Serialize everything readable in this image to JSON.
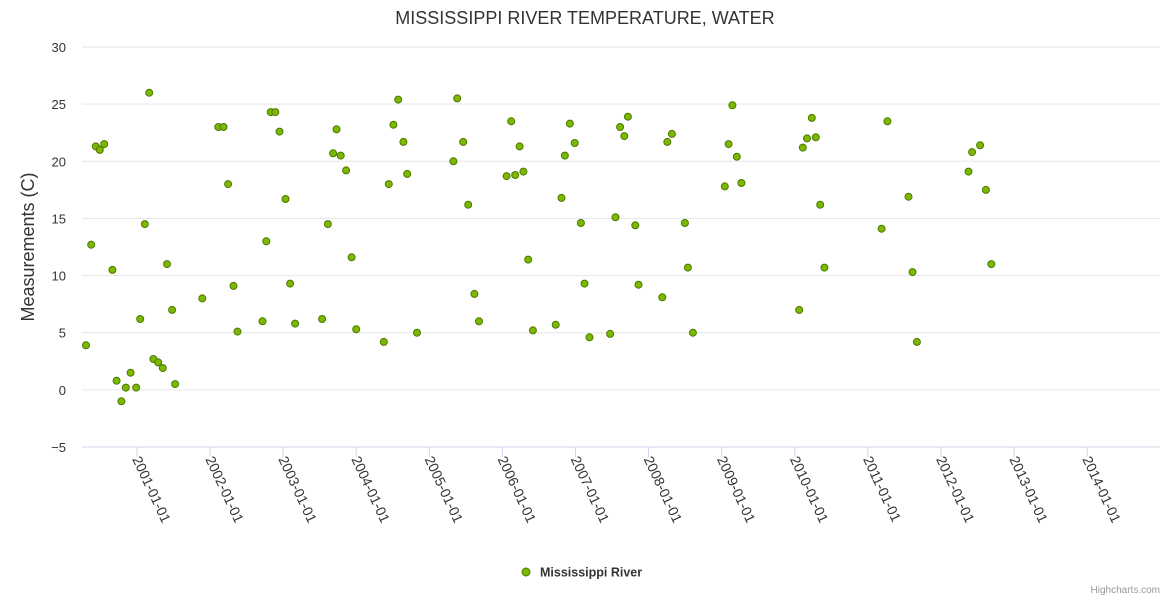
{
  "chart_data": {
    "type": "scatter",
    "title": "MISSISSIPPI RIVER TEMPERATURE, WATER",
    "xlabel": "",
    "ylabel": "Measurements (C)",
    "x_axis_type": "date",
    "xlim": [
      "2000-04-01",
      "2014-12-31"
    ],
    "ylim": [
      -5,
      30
    ],
    "y_ticks": [
      -5,
      0,
      5,
      10,
      15,
      20,
      25,
      30
    ],
    "x_ticks": [
      "2001-01-01",
      "2002-01-01",
      "2003-01-01",
      "2004-01-01",
      "2005-01-01",
      "2006-01-01",
      "2007-01-01",
      "2008-01-01",
      "2009-01-01",
      "2010-01-01",
      "2011-01-01",
      "2012-01-01",
      "2013-01-01",
      "2014-01-01"
    ],
    "grid": "y-only",
    "legend_position": "bottom-center",
    "marker_color": "#7cb800",
    "marker_stroke": "#4a7a00",
    "series": [
      {
        "name": "Mississippi River",
        "points": [
          [
            "2000-04-21",
            3.9
          ],
          [
            "2000-05-17",
            12.7
          ],
          [
            "2000-06-09",
            21.3
          ],
          [
            "2000-06-29",
            21.0
          ],
          [
            "2000-07-21",
            21.5
          ],
          [
            "2000-08-31",
            10.5
          ],
          [
            "2000-09-21",
            0.8
          ],
          [
            "2000-10-15",
            -1.0
          ],
          [
            "2000-11-06",
            0.2
          ],
          [
            "2000-11-30",
            1.5
          ],
          [
            "2000-12-28",
            0.2
          ],
          [
            "2001-01-17",
            6.2
          ],
          [
            "2001-02-09",
            14.5
          ],
          [
            "2001-03-03",
            26.0
          ],
          [
            "2001-03-24",
            2.7
          ],
          [
            "2001-04-17",
            2.4
          ],
          [
            "2001-05-10",
            1.9
          ],
          [
            "2001-05-31",
            11.0
          ],
          [
            "2001-06-25",
            7.0
          ],
          [
            "2001-07-10",
            0.5
          ],
          [
            "2001-11-23",
            8.0
          ],
          [
            "2002-02-11",
            23.0
          ],
          [
            "2002-03-09",
            23.0
          ],
          [
            "2002-04-01",
            18.0
          ],
          [
            "2002-04-28",
            9.1
          ],
          [
            "2002-05-18",
            5.1
          ],
          [
            "2002-09-20",
            6.0
          ],
          [
            "2002-10-09",
            13.0
          ],
          [
            "2002-10-31",
            24.3
          ],
          [
            "2002-11-23",
            24.3
          ],
          [
            "2002-12-14",
            22.6
          ],
          [
            "2003-01-13",
            16.7
          ],
          [
            "2003-02-05",
            9.3
          ],
          [
            "2003-03-02",
            5.8
          ],
          [
            "2003-07-15",
            6.2
          ],
          [
            "2003-08-13",
            14.5
          ],
          [
            "2003-09-08",
            20.7
          ],
          [
            "2003-09-25",
            22.8
          ],
          [
            "2003-10-16",
            20.5
          ],
          [
            "2003-11-12",
            19.2
          ],
          [
            "2003-12-09",
            11.6
          ],
          [
            "2004-01-01",
            5.3
          ],
          [
            "2004-05-18",
            4.2
          ],
          [
            "2004-06-12",
            18.0
          ],
          [
            "2004-07-05",
            23.2
          ],
          [
            "2004-07-29",
            25.4
          ],
          [
            "2004-08-24",
            21.7
          ],
          [
            "2004-09-12",
            18.9
          ],
          [
            "2004-10-31",
            5.0
          ],
          [
            "2005-05-01",
            20.0
          ],
          [
            "2005-05-20",
            25.5
          ],
          [
            "2005-06-19",
            21.7
          ],
          [
            "2005-07-14",
            16.2
          ],
          [
            "2005-08-14",
            8.4
          ],
          [
            "2005-09-06",
            6.0
          ],
          [
            "2006-01-22",
            18.7
          ],
          [
            "2006-02-14",
            23.5
          ],
          [
            "2006-03-06",
            18.8
          ],
          [
            "2006-03-28",
            21.3
          ],
          [
            "2006-04-16",
            19.1
          ],
          [
            "2006-05-10",
            11.4
          ],
          [
            "2006-06-02",
            5.2
          ],
          [
            "2006-09-24",
            5.7
          ],
          [
            "2006-10-23",
            16.8
          ],
          [
            "2006-11-09",
            20.5
          ],
          [
            "2006-12-04",
            23.3
          ],
          [
            "2006-12-28",
            21.6
          ],
          [
            "2007-01-28",
            14.6
          ],
          [
            "2007-02-15",
            9.3
          ],
          [
            "2007-03-12",
            4.6
          ],
          [
            "2007-06-23",
            4.9
          ],
          [
            "2007-07-20",
            15.1
          ],
          [
            "2007-08-12",
            23.0
          ],
          [
            "2007-09-02",
            22.2
          ],
          [
            "2007-09-20",
            23.9
          ],
          [
            "2007-10-27",
            14.4
          ],
          [
            "2007-11-12",
            9.2
          ],
          [
            "2008-03-10",
            8.1
          ],
          [
            "2008-04-04",
            21.7
          ],
          [
            "2008-04-27",
            22.4
          ],
          [
            "2008-07-01",
            14.6
          ],
          [
            "2008-07-16",
            10.7
          ],
          [
            "2008-08-10",
            5.0
          ],
          [
            "2009-01-16",
            17.8
          ],
          [
            "2009-02-04",
            21.5
          ],
          [
            "2009-02-23",
            24.9
          ],
          [
            "2009-03-17",
            20.4
          ],
          [
            "2009-04-09",
            18.1
          ],
          [
            "2010-01-23",
            7.0
          ],
          [
            "2010-02-10",
            21.2
          ],
          [
            "2010-03-03",
            22.0
          ],
          [
            "2010-03-27",
            23.8
          ],
          [
            "2010-04-16",
            22.1
          ],
          [
            "2010-05-08",
            16.2
          ],
          [
            "2010-05-29",
            10.7
          ],
          [
            "2011-03-11",
            14.1
          ],
          [
            "2011-04-09",
            23.5
          ],
          [
            "2011-07-23",
            16.9
          ],
          [
            "2011-08-12",
            10.3
          ],
          [
            "2011-09-03",
            4.2
          ],
          [
            "2012-05-18",
            19.1
          ],
          [
            "2012-06-05",
            20.8
          ],
          [
            "2012-07-15",
            21.4
          ],
          [
            "2012-08-13",
            17.5
          ],
          [
            "2012-09-09",
            11.0
          ]
        ]
      }
    ]
  },
  "legend": {
    "label": "Mississippi River"
  },
  "credits": "Highcharts.com"
}
